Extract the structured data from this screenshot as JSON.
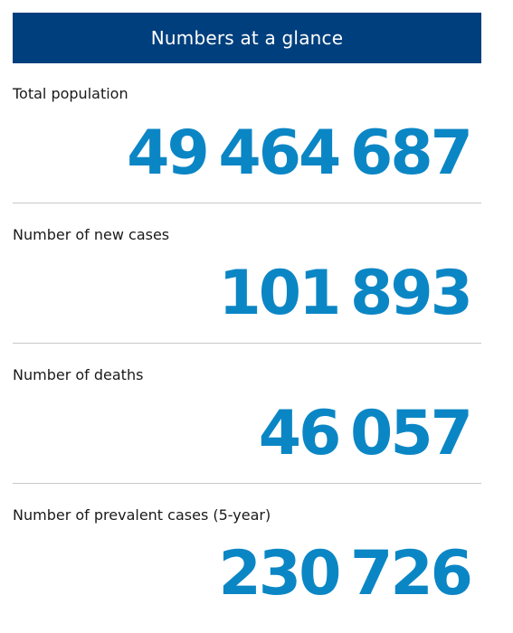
{
  "header": {
    "title": "Numbers at a glance"
  },
  "stats": [
    {
      "label": "Total population",
      "value": "49 464 687"
    },
    {
      "label": "Number of new cases",
      "value": "101 893"
    },
    {
      "label": "Number of deaths",
      "value": "46 057"
    },
    {
      "label": "Number of prevalent cases (5-year)",
      "value": "230 726"
    }
  ],
  "colors": {
    "header_background": "#003f7d",
    "header_text": "#ffffff",
    "value_text": "#0b86c5",
    "divider": "#c8c8c8"
  }
}
